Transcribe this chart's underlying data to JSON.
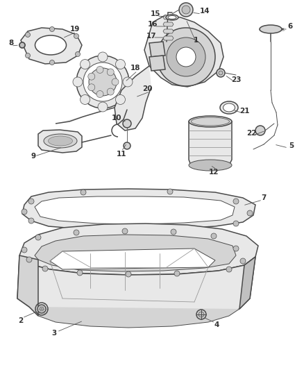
{
  "bg_color": "#ffffff",
  "line_color": "#4a4a4a",
  "label_color": "#333333",
  "figsize": [
    4.38,
    5.33
  ],
  "dpi": 100,
  "font_size": 7.5,
  "font_weight": "bold",
  "lw_main": 1.1,
  "lw_thin": 0.7,
  "part_gray": "#e8e8e8",
  "part_gray2": "#d4d4d4",
  "part_gray3": "#c0c0c0",
  "white": "#ffffff"
}
